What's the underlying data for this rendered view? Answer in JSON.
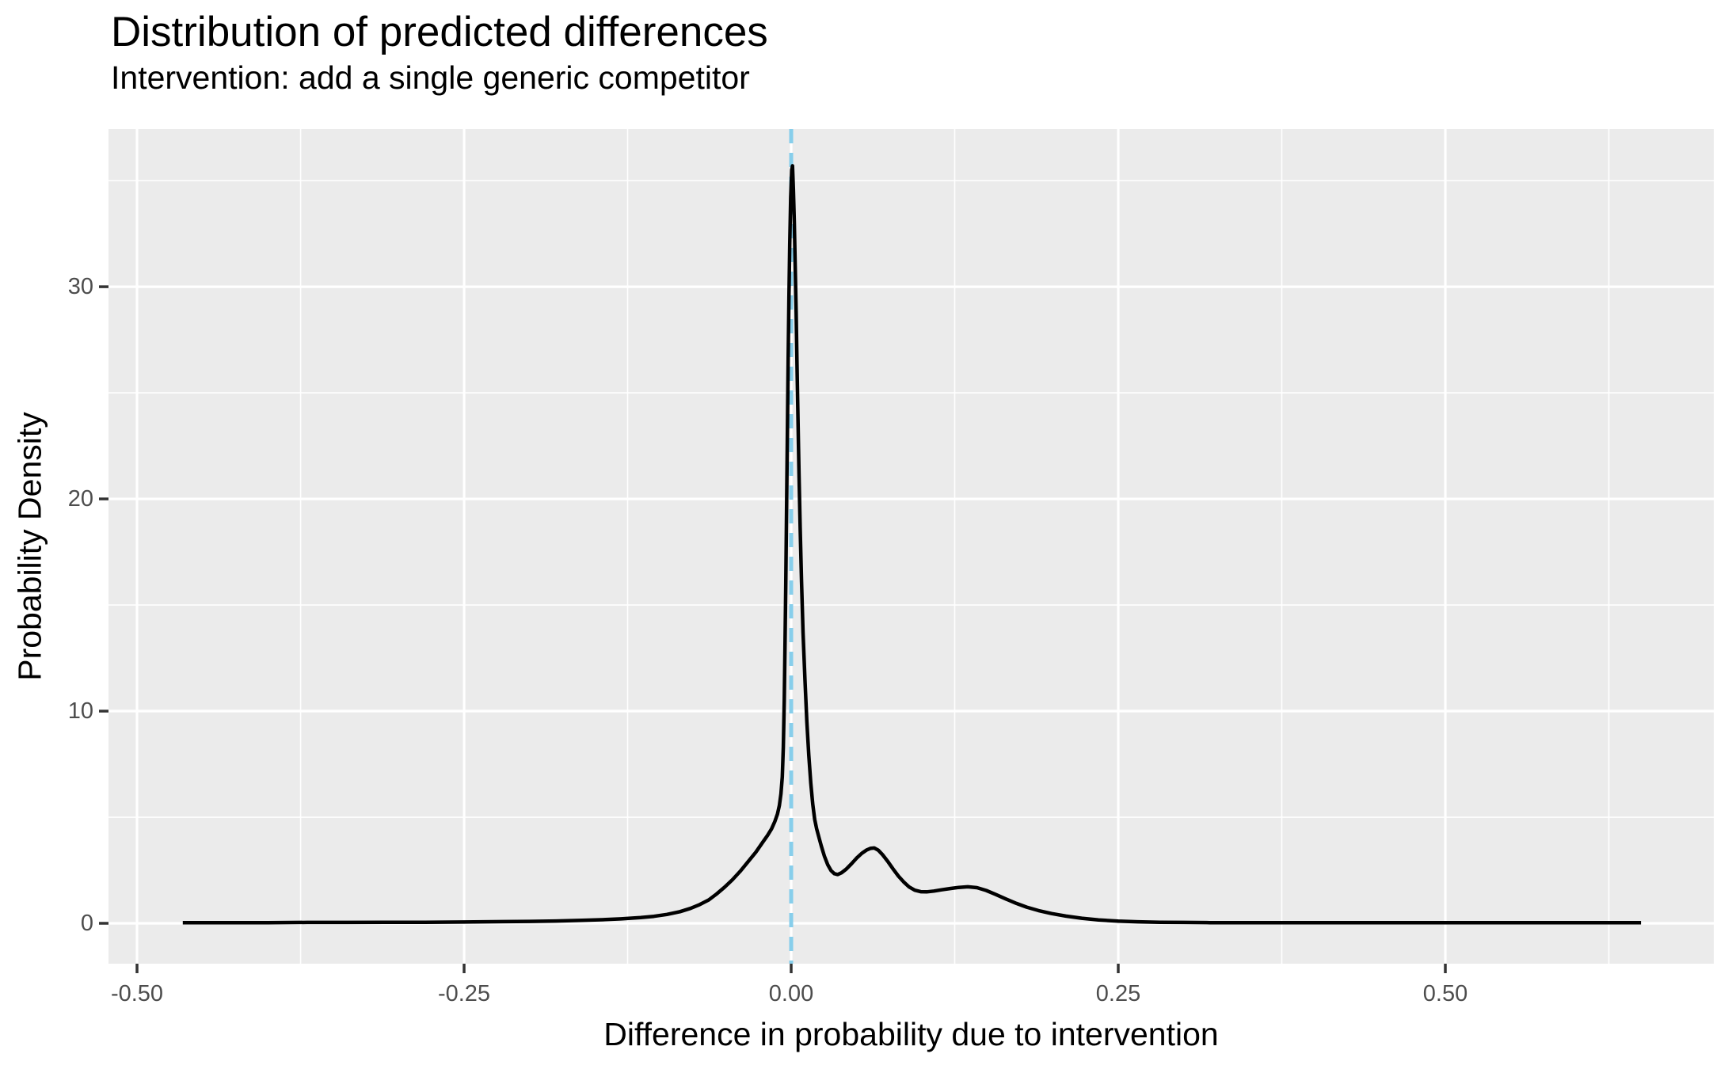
{
  "chart_data": {
    "type": "line",
    "subtype": "density",
    "title": "Distribution of predicted differences",
    "subtitle": "Intervention: add a single generic competitor",
    "xlabel": "Difference in probability due to intervention",
    "ylabel": "Probability Density",
    "xlim": [
      -0.5218,
      0.7052
    ],
    "ylim": [
      -1.903,
      37.43
    ],
    "grid": true,
    "legend": "none",
    "panel_bg": "#EBEBEB",
    "grid_color": "#FFFFFF",
    "curve_color": "#000000",
    "tick_mark_color": "#333333",
    "tick_label_color": "#4D4D4D",
    "x_ticks": {
      "values": [
        -0.5,
        -0.25,
        0.0,
        0.25,
        0.5
      ],
      "labels": [
        "-0.50",
        "-0.25",
        "0.00",
        "0.25",
        "0.50"
      ]
    },
    "x_minor": [
      -0.375,
      -0.125,
      0.125,
      0.375,
      0.625
    ],
    "y_ticks": {
      "values": [
        0,
        10,
        20,
        30
      ],
      "labels": [
        "0",
        "10",
        "20",
        "30"
      ]
    },
    "y_minor": [
      5,
      15,
      25,
      35
    ],
    "vline": {
      "x": 0,
      "style": "dashed",
      "color": "#87CEEB"
    },
    "series": [
      {
        "name": "density of predicted differences",
        "points": [
          [
            -0.465,
            0.03
          ],
          [
            -0.43,
            0.03
          ],
          [
            -0.4,
            0.03
          ],
          [
            -0.37,
            0.04
          ],
          [
            -0.34,
            0.04
          ],
          [
            -0.31,
            0.05
          ],
          [
            -0.28,
            0.05
          ],
          [
            -0.25,
            0.06
          ],
          [
            -0.22,
            0.08
          ],
          [
            -0.2,
            0.09
          ],
          [
            -0.18,
            0.11
          ],
          [
            -0.16,
            0.14
          ],
          [
            -0.145,
            0.17
          ],
          [
            -0.13,
            0.21
          ],
          [
            -0.115,
            0.27
          ],
          [
            -0.105,
            0.33
          ],
          [
            -0.095,
            0.42
          ],
          [
            -0.085,
            0.55
          ],
          [
            -0.077,
            0.7
          ],
          [
            -0.07,
            0.88
          ],
          [
            -0.063,
            1.1
          ],
          [
            -0.057,
            1.38
          ],
          [
            -0.051,
            1.7
          ],
          [
            -0.045,
            2.05
          ],
          [
            -0.039,
            2.45
          ],
          [
            -0.033,
            2.9
          ],
          [
            -0.027,
            3.35
          ],
          [
            -0.022,
            3.8
          ],
          [
            -0.018,
            4.15
          ],
          [
            -0.015,
            4.45
          ],
          [
            -0.0125,
            4.8
          ],
          [
            -0.0105,
            5.15
          ],
          [
            -0.009,
            5.55
          ],
          [
            -0.0078,
            6.1
          ],
          [
            -0.0068,
            6.9
          ],
          [
            -0.006,
            8.3
          ],
          [
            -0.0053,
            10.5
          ],
          [
            -0.0047,
            13.0
          ],
          [
            -0.0041,
            16.0
          ],
          [
            -0.0035,
            19.5
          ],
          [
            -0.0029,
            23.0
          ],
          [
            -0.0023,
            26.5
          ],
          [
            -0.0017,
            29.5
          ],
          [
            -0.0011,
            32.0
          ],
          [
            -0.0004,
            34.2
          ],
          [
            0.0004,
            35.5
          ],
          [
            0.001,
            35.7
          ],
          [
            0.0017,
            34.6
          ],
          [
            0.0024,
            33.0
          ],
          [
            0.0031,
            31.0
          ],
          [
            0.0038,
            28.8
          ],
          [
            0.0045,
            26.3
          ],
          [
            0.0052,
            23.8
          ],
          [
            0.006,
            21.2
          ],
          [
            0.0069,
            18.6
          ],
          [
            0.0079,
            16.1
          ],
          [
            0.0091,
            13.7
          ],
          [
            0.0105,
            11.5
          ],
          [
            0.012,
            9.5
          ],
          [
            0.0135,
            7.9
          ],
          [
            0.015,
            6.6
          ],
          [
            0.0165,
            5.6
          ],
          [
            0.018,
            4.9
          ],
          [
            0.0195,
            4.45
          ],
          [
            0.021,
            4.1
          ],
          [
            0.023,
            3.65
          ],
          [
            0.0255,
            3.15
          ],
          [
            0.028,
            2.75
          ],
          [
            0.0305,
            2.48
          ],
          [
            0.033,
            2.34
          ],
          [
            0.0355,
            2.3
          ],
          [
            0.0385,
            2.38
          ],
          [
            0.042,
            2.55
          ],
          [
            0.046,
            2.8
          ],
          [
            0.05,
            3.07
          ],
          [
            0.054,
            3.3
          ],
          [
            0.0575,
            3.45
          ],
          [
            0.0605,
            3.53
          ],
          [
            0.0635,
            3.55
          ],
          [
            0.0665,
            3.45
          ],
          [
            0.07,
            3.22
          ],
          [
            0.074,
            2.9
          ],
          [
            0.078,
            2.55
          ],
          [
            0.082,
            2.22
          ],
          [
            0.086,
            1.95
          ],
          [
            0.09,
            1.72
          ],
          [
            0.0945,
            1.56
          ],
          [
            0.099,
            1.49
          ],
          [
            0.1035,
            1.48
          ],
          [
            0.109,
            1.52
          ],
          [
            0.115,
            1.58
          ],
          [
            0.1215,
            1.64
          ],
          [
            0.128,
            1.69
          ],
          [
            0.135,
            1.72
          ],
          [
            0.142,
            1.68
          ],
          [
            0.149,
            1.55
          ],
          [
            0.156,
            1.37
          ],
          [
            0.164,
            1.15
          ],
          [
            0.172,
            0.94
          ],
          [
            0.18,
            0.76
          ],
          [
            0.189,
            0.6
          ],
          [
            0.199,
            0.46
          ],
          [
            0.21,
            0.34
          ],
          [
            0.222,
            0.24
          ],
          [
            0.235,
            0.16
          ],
          [
            0.25,
            0.1
          ],
          [
            0.265,
            0.07
          ],
          [
            0.282,
            0.05
          ],
          [
            0.3,
            0.04
          ],
          [
            0.32,
            0.03
          ],
          [
            0.35,
            0.03
          ],
          [
            0.39,
            0.03
          ],
          [
            0.44,
            0.03
          ],
          [
            0.5,
            0.03
          ],
          [
            0.57,
            0.03
          ],
          [
            0.6496,
            0.03
          ]
        ]
      }
    ]
  }
}
